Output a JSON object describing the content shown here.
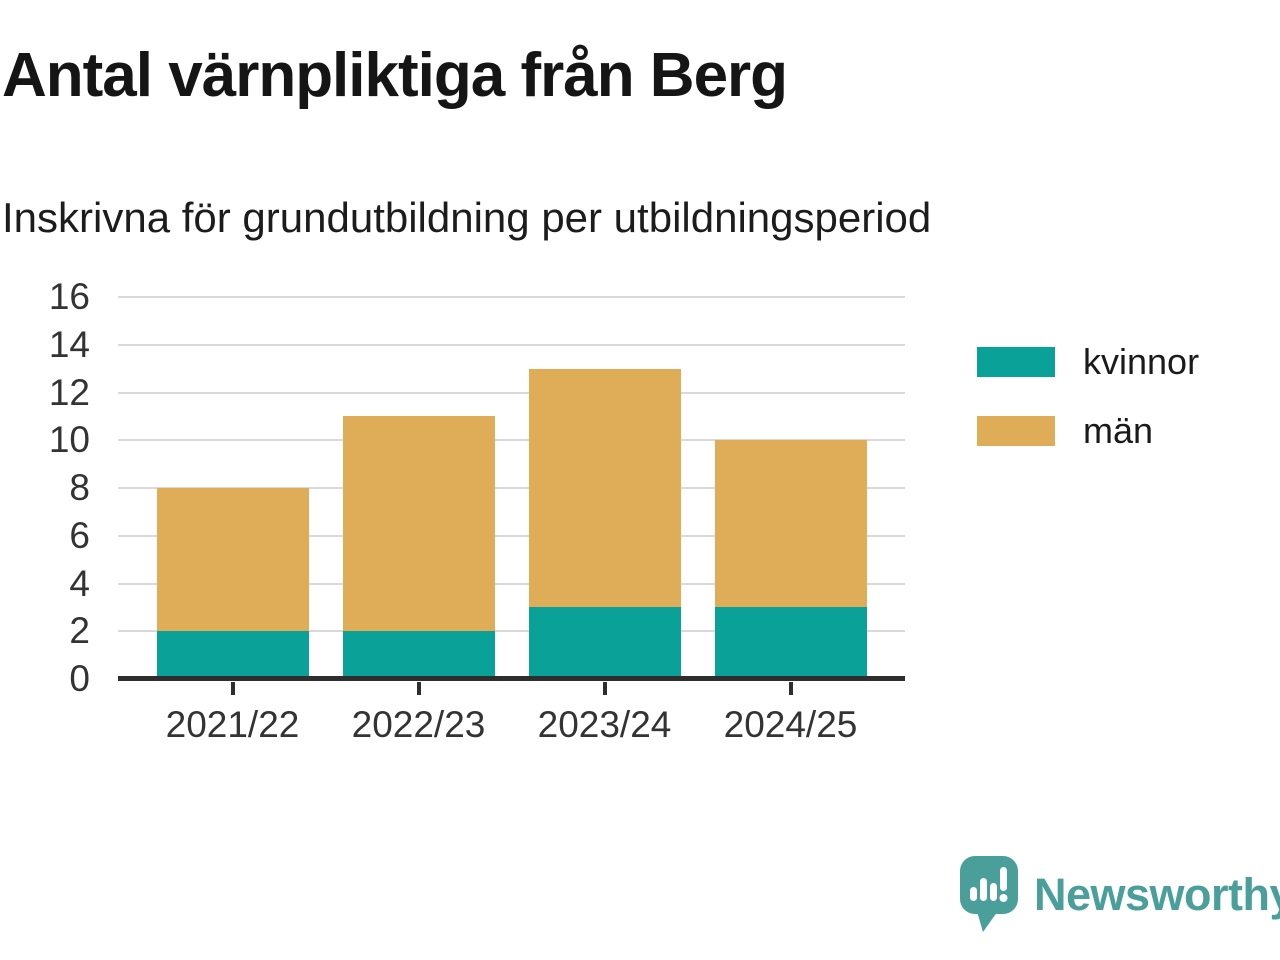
{
  "header": {
    "title": "Antal värnpliktiga från Berg",
    "subtitle": "Inskrivna för grundutbildning per utbildningsperiod"
  },
  "chart_data": {
    "type": "bar",
    "stacked": true,
    "title": "Antal värnpliktiga från Berg",
    "subtitle": "Inskrivna för grundutbildning per utbildningsperiod",
    "categories": [
      "2021/22",
      "2022/23",
      "2023/24",
      "2024/25"
    ],
    "series": [
      {
        "name": "kvinnor",
        "color": "#0aa298",
        "values": [
          2,
          2,
          3,
          3
        ]
      },
      {
        "name": "män",
        "color": "#dfac57",
        "values": [
          6,
          9,
          10,
          7
        ]
      }
    ],
    "stack_totals": [
      8,
      11,
      13,
      10
    ],
    "xlabel": "",
    "ylabel": "",
    "ylim": [
      0,
      16
    ],
    "yticks": [
      0,
      2,
      4,
      6,
      8,
      10,
      12,
      14,
      16
    ],
    "grid": true,
    "legend_position": "right"
  },
  "branding": {
    "logo_text": "Newsworthy",
    "logo_icon": "speech-bubble-bar-chart-icon",
    "logo_color": "#4a9f9a"
  },
  "colors": {
    "background": "#ffffff",
    "title_text": "#151515",
    "axis_text": "#333333",
    "gridline": "#d9d9d9",
    "axis_line": "#2e2e2e"
  }
}
